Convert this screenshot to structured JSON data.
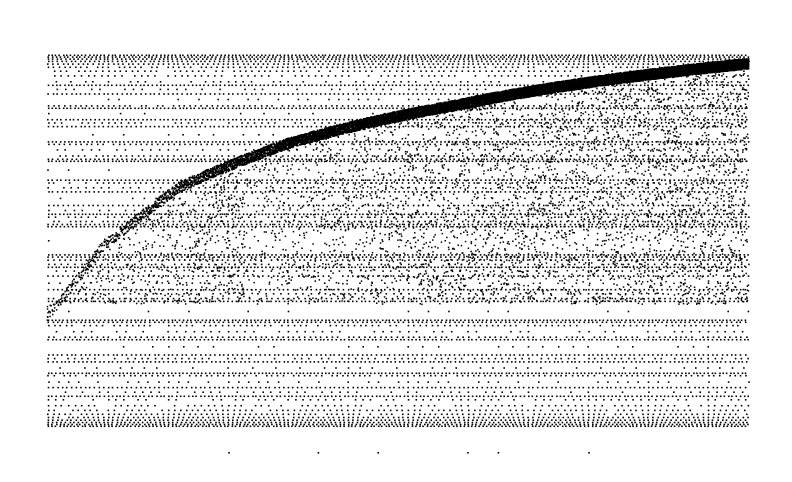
{
  "chart_data": {
    "type": "scatter",
    "title": "",
    "xlabel": "",
    "ylabel": "",
    "grid": false,
    "legend": "none",
    "axes_visible": false,
    "point_color": "#000000",
    "background": "#ffffff",
    "x_range": [
      2,
      300
    ],
    "y_range": [
      0,
      1
    ],
    "description_of_pattern": "",
    "series": [
      {
        "kind": "rational-level-lines",
        "denominators": [
          2,
          3,
          4,
          5,
          6,
          7,
          8,
          9,
          10,
          11,
          12,
          13,
          14,
          15,
          16
        ]
      },
      {
        "kind": "upper-envelope",
        "points": [
          [
            2,
            0.33
          ],
          [
            4,
            0.5
          ],
          [
            10,
            0.64
          ],
          [
            30,
            0.74
          ],
          [
            100,
            0.83
          ],
          [
            300,
            0.93
          ]
        ]
      }
    ]
  }
}
